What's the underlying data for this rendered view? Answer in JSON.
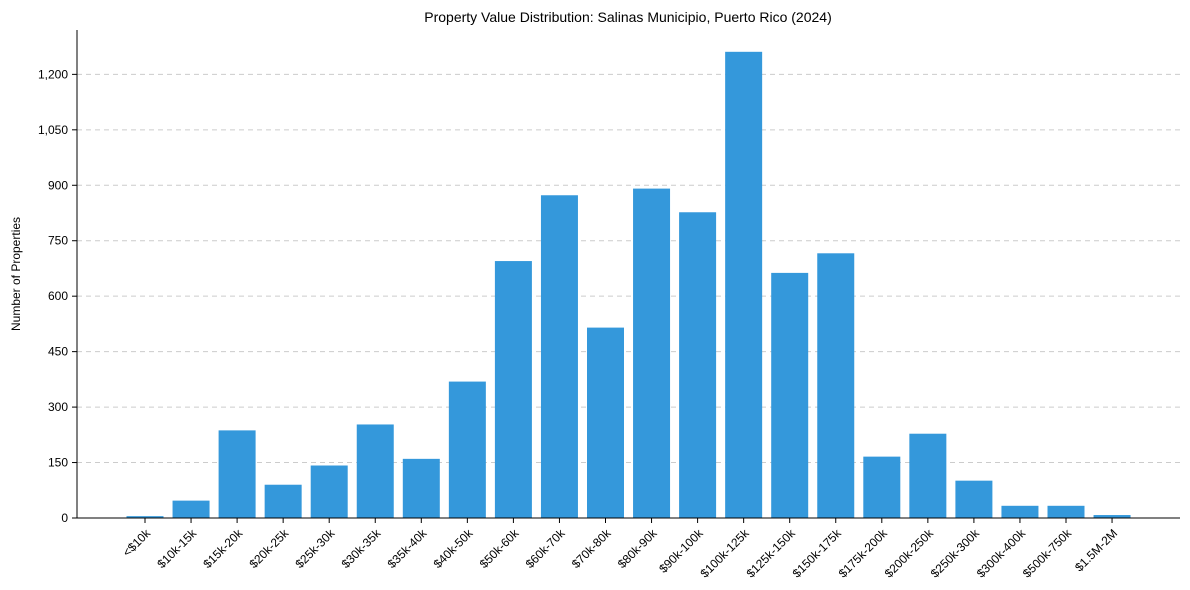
{
  "chart_data": {
    "type": "bar",
    "title": "Property Value Distribution: Salinas Municipio, Puerto Rico (2024)",
    "xlabel": "",
    "ylabel": "Number of Properties",
    "categories": [
      "<$10k",
      "$10k-15k",
      "$15k-20k",
      "$20k-25k",
      "$25k-30k",
      "$30k-35k",
      "$35k-40k",
      "$40k-50k",
      "$50k-60k",
      "$60k-70k",
      "$70k-80k",
      "$80k-90k",
      "$90k-100k",
      "$100k-125k",
      "$125k-150k",
      "$150k-175k",
      "$175k-200k",
      "$200k-250k",
      "$250k-300k",
      "$300k-400k",
      "$500k-750k",
      "$1.5M-2M"
    ],
    "values": [
      5,
      47,
      237,
      90,
      142,
      253,
      160,
      369,
      695,
      873,
      515,
      891,
      827,
      1261,
      663,
      716,
      166,
      228,
      101,
      33,
      33,
      8
    ],
    "ylim": [
      0,
      1320
    ],
    "yticks": [
      0,
      150,
      300,
      450,
      600,
      750,
      900,
      1050,
      1200
    ],
    "ytick_labels": [
      "0",
      "150",
      "300",
      "450",
      "600",
      "750",
      "900",
      "1,050",
      "1,200"
    ],
    "grid": "y-dashed",
    "bar_color": "#3498db"
  }
}
